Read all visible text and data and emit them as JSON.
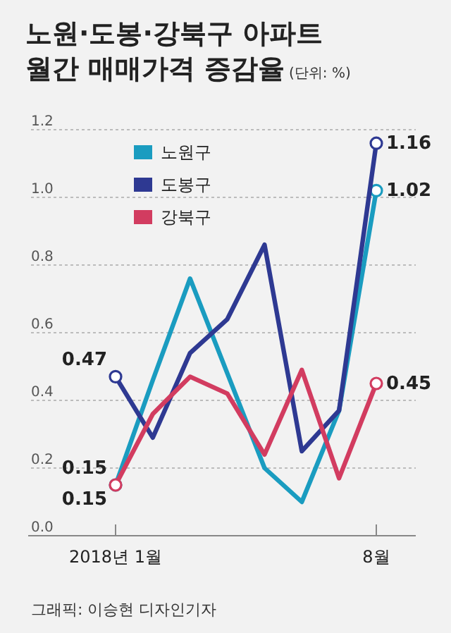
{
  "chart_data": {
    "type": "line",
    "title": "노원·도봉·강북구 아파트\n월간 매매가격 증감율",
    "subtitle": "(단위: %)",
    "categories": [
      "2018년 1월",
      null,
      null,
      null,
      null,
      null,
      null,
      "8월"
    ],
    "series": [
      {
        "name": "노원구",
        "color": "#1a9cc0",
        "values": [
          0.15,
          0.46,
          0.76,
          0.48,
          0.2,
          0.1,
          0.37,
          1.02
        ],
        "value_labels": [
          "0.15",
          null,
          null,
          null,
          null,
          null,
          null,
          "1.02"
        ]
      },
      {
        "name": "도봉구",
        "color": "#2e3992",
        "values": [
          0.47,
          0.29,
          0.54,
          0.64,
          0.86,
          0.25,
          0.37,
          1.16
        ],
        "value_labels": [
          "0.47",
          null,
          null,
          null,
          null,
          null,
          null,
          "1.16"
        ]
      },
      {
        "name": "강북구",
        "color": "#d23c60",
        "values": [
          0.15,
          0.36,
          0.47,
          0.42,
          0.24,
          0.49,
          0.17,
          0.45
        ],
        "value_labels": [
          "0.15",
          null,
          null,
          null,
          null,
          null,
          null,
          "0.45"
        ]
      }
    ],
    "ylim": [
      0,
      1.2
    ],
    "yticks": [
      {
        "value": 0,
        "label": "0.0"
      },
      {
        "value": 0.2,
        "label": "0.2"
      },
      {
        "value": 0.4,
        "label": "0.4"
      },
      {
        "value": 0.6,
        "label": "0.6"
      },
      {
        "value": 0.8,
        "label": "0.8"
      },
      {
        "value": 1,
        "label": "1.0"
      },
      {
        "value": 1.2,
        "label": "1.2"
      }
    ],
    "grid": "y",
    "legend": "top left",
    "annotations": [
      "그래픽: 이승현 디자인기자"
    ]
  }
}
